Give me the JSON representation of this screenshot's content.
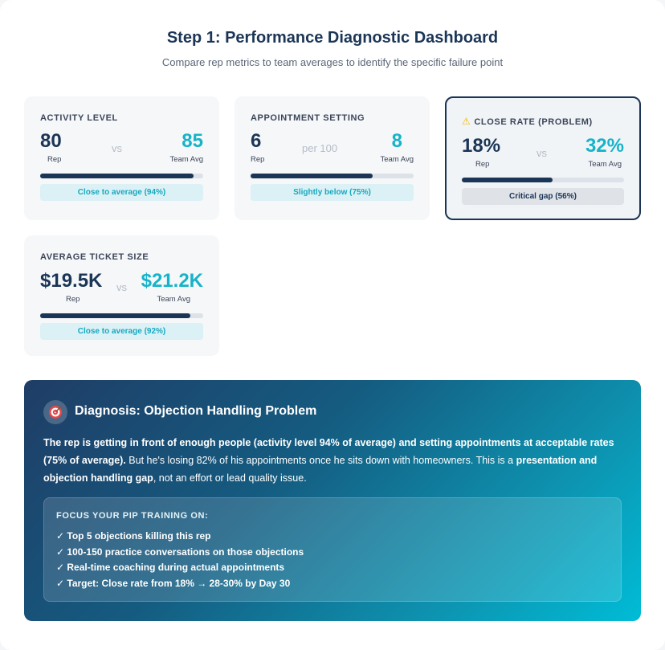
{
  "header": {
    "title": "Step 1: Performance Diagnostic Dashboard",
    "subtitle": "Compare rep metrics to team averages to identify the specific failure point"
  },
  "cards": [
    {
      "label": "ACTIVITY LEVEL",
      "rep_value": "80",
      "rep_label": "Rep",
      "separator": "vs",
      "team_value": "85",
      "team_label": "Team Avg",
      "progress": 0.94,
      "status": "Close to average (94%)",
      "problem": false
    },
    {
      "label": "APPOINTMENT SETTING",
      "rep_value": "6",
      "rep_label": "Rep",
      "separator": "per 100",
      "team_value": "8",
      "team_label": "Team Avg",
      "progress": 0.75,
      "status": "Slightly below (75%)",
      "problem": false
    },
    {
      "label": "CLOSE RATE (PROBLEM)",
      "rep_value": "18%",
      "rep_label": "Rep",
      "separator": "vs",
      "team_value": "32%",
      "team_label": "Team Avg",
      "progress": 0.56,
      "status": "Critical gap (56%)",
      "problem": true,
      "icon": "warning-icon"
    },
    {
      "label": "AVERAGE TICKET SIZE",
      "rep_value": "$19.5K",
      "rep_label": "Rep",
      "separator": "vs",
      "team_value": "$21.2K",
      "team_label": "Team Avg",
      "progress": 0.92,
      "status": "Close to average (92%)",
      "problem": false
    }
  ],
  "diagnosis": {
    "icon": "target-icon",
    "title": "Diagnosis: Objection Handling Problem",
    "text_bold_1": "The rep is getting in front of enough people (activity level 94% of average) and setting appointments at acceptable rates (75% of average).",
    "text_1": " But he's losing 82% of his appointments once he sits down with homeowners. This is a ",
    "text_bold_2": "presentation and objection handling gap",
    "text_2": ", not an effort or lead quality issue.",
    "focus_title": "FOCUS YOUR PIP TRAINING ON:",
    "focus_items": [
      "✓ Top 5 objections killing this rep",
      "✓ 100-150 practice conversations on those objections",
      "✓ Real-time coaching during actual appointments",
      "✓ Target: Close rate from 18% → 28-30% by Day 30"
    ]
  },
  "colors": {
    "navy": "#1b3556",
    "teal": "#17b3c8",
    "warning": "#f0b400"
  }
}
